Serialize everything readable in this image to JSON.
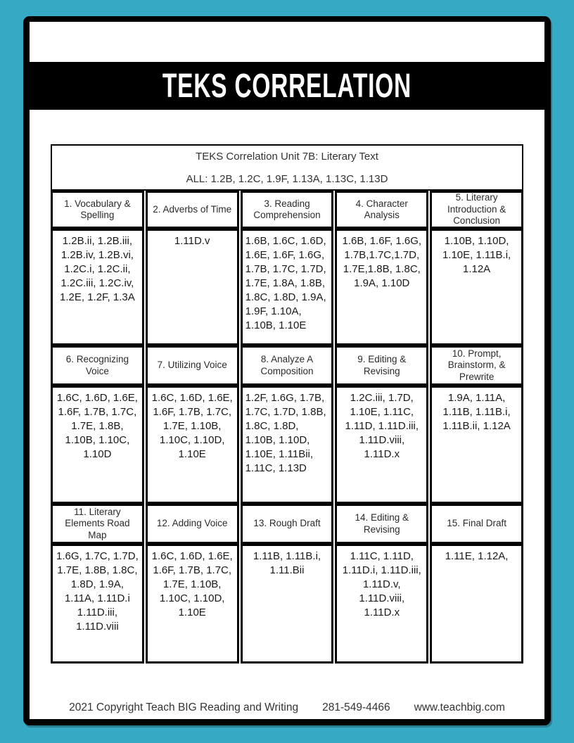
{
  "banner": {
    "title": "TEKS CORRELATION"
  },
  "table": {
    "title": "TEKS Correlation Unit 7B: Literary Text",
    "subtitle": "ALL: 1.2B, 1.2C, 1.9F, 1.13A, 1.13C, 1.13D",
    "sections": [
      {
        "columns": [
          {
            "header": "1. Vocabulary & Spelling",
            "codes": "1.2B.ii, 1.2B.iii, 1.2B.iv, 1.2B.vi, 1.2C.i, 1.2C.ii, 1.2C.iii, 1.2C.iv, 1.2E, 1.2F, 1.3A"
          },
          {
            "header": "2. Adverbs of Time",
            "codes": "1.11D.v"
          },
          {
            "header": "3. Reading Comprehension",
            "codes": "1.6B, 1.6C, 1.6D, 1.6E, 1.6F, 1.6G, 1.7B, 1.7C, 1.7D, 1.7E, 1.8A, 1.8B, 1.8C, 1.8D, 1.9A, 1.9F, 1.10A, 1.10B, 1.10E"
          },
          {
            "header": "4. Character Analysis",
            "codes": "1.6B, 1.6F, 1.6G, 1.7B,1.7C,1.7D, 1.7E,1.8B, 1.8C, 1.9A, 1.10D"
          },
          {
            "header": "5. Literary Introduction & Conclusion",
            "codes": "1.10B, 1.10D, 1.10E, 1.11B.i, 1.12A"
          }
        ]
      },
      {
        "columns": [
          {
            "header": "6. Recognizing Voice",
            "codes": "1.6C, 1.6D, 1.6E, 1.6F, 1.7B, 1.7C, 1.7E, 1.8B, 1.10B, 1.10C, 1.10D"
          },
          {
            "header": "7. Utilizing Voice",
            "codes": "1.6C, 1.6D, 1.6E, 1.6F, 1.7B, 1.7C, 1.7E, 1.10B, 1.10C, 1.10D, 1.10E"
          },
          {
            "header": "8. Analyze A Composition",
            "codes": "1.2F, 1.6G, 1.7B, 1.7C, 1.7D, 1.8B, 1.8C, 1.8D, 1.10B, 1.10D, 1.10E, 1.11Bii, 1.11C, 1.13D"
          },
          {
            "header": "9. Editing & Revising",
            "codes": "1.2C.iii, 1.7D, 1.10E, 1.11C, 1.11D, 1.11D.iii, 1.11D.viii, 1.11D.x"
          },
          {
            "header": "10. Prompt, Brainstorm, & Prewrite",
            "codes": "1.9A, 1.11A, 1.11B, 1.11B.i, 1.11B.ii, 1.12A"
          }
        ]
      },
      {
        "columns": [
          {
            "header": "11. Literary Elements Road Map",
            "codes": "1.6G, 1.7C, 1.7D, 1.7E, 1.8B, 1.8C, 1.8D, 1.9A, 1.11A, 1.11D.i 1.11D.iii, 1.11D.viii"
          },
          {
            "header": "12. Adding Voice",
            "codes": "1.6C, 1.6D, 1.6E, 1.6F, 1.7B, 1.7C, 1.7E, 1.10B, 1.10C, 1.10D, 1.10E"
          },
          {
            "header": "13. Rough Draft",
            "codes": "1.11B, 1.11B.i, 1.11.Bii"
          },
          {
            "header": "14. Editing & Revising",
            "codes": "1.11C, 1.11D, 1.11D.i, 1.11D.iii, 1.11D.v, 1.11D.viii, 1.11D.x"
          },
          {
            "header": "15. Final Draft",
            "codes": "1.11E, 1.12A,"
          }
        ]
      }
    ]
  },
  "footer": {
    "copyright": "2021 Copyright Teach BIG Reading and Writing",
    "phone": "281-549-4466",
    "website": "www.teachbig.com"
  },
  "colors": {
    "background_teal": "#36A9C4",
    "banner_black": "#000000",
    "page_white": "#FFFFFF"
  }
}
